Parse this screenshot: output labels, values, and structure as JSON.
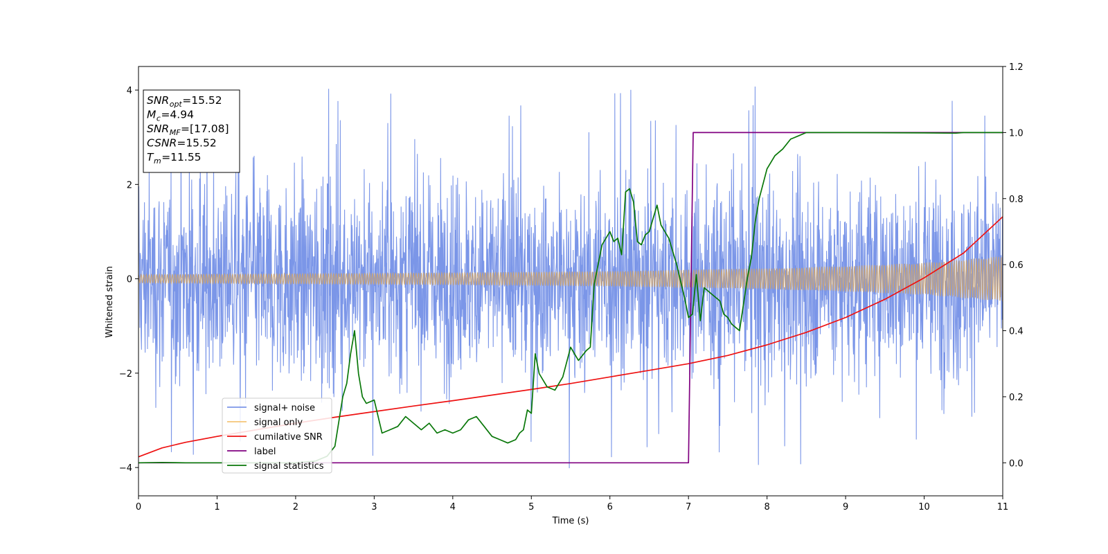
{
  "chart_data": {
    "type": "line",
    "xlabel": "Time (s)",
    "ylabel": "Whitened strain",
    "x_ticks": [
      "0",
      "1",
      "2",
      "3",
      "4",
      "5",
      "6",
      "7",
      "8",
      "9",
      "10",
      "11"
    ],
    "y_ticks": [
      "−4",
      "−2",
      "0",
      "2",
      "4"
    ],
    "y2_ticks": [
      "0.0",
      "0.2",
      "0.4",
      "0.6",
      "0.8",
      "1.0",
      "1.2"
    ],
    "xlim": [
      0,
      11
    ],
    "ylim": [
      -4.6,
      4.5
    ],
    "y2lim": [
      -0.1,
      1.2
    ],
    "grid": false,
    "legend_position": "lower-left",
    "info_box": {
      "position": "top-left",
      "lines": [
        {
          "name": "SNR",
          "sub": "opt",
          "value": "=15.52"
        },
        {
          "name": "M",
          "sub": "c",
          "value": "=4.94"
        },
        {
          "name": "SNR",
          "sub": "MF",
          "value": "=[17.08]"
        },
        {
          "name": "CSNR",
          "sub": "",
          "value": "=15.52"
        },
        {
          "name": "T",
          "sub": "m",
          "value": "=11.55"
        }
      ]
    },
    "series": [
      {
        "name": "signal+ noise",
        "axis": "left",
        "color": "#7b96e8",
        "kind": "noise",
        "approx_amplitude": 1.6,
        "approx_peak": 4.1
      },
      {
        "name": "signal only",
        "axis": "left",
        "color": "#f5b861",
        "kind": "chirp",
        "envelope": {
          "x": [
            0,
            2,
            4,
            6,
            7,
            8,
            9,
            10,
            11
          ],
          "y": [
            0.09,
            0.11,
            0.13,
            0.16,
            0.19,
            0.22,
            0.27,
            0.34,
            0.48
          ]
        }
      },
      {
        "name": "cumilative SNR",
        "axis": "right",
        "color": "#ee1111",
        "x": [
          0,
          0.3,
          0.6,
          1,
          1.5,
          2,
          2.5,
          3,
          3.5,
          4,
          4.5,
          5,
          5.5,
          6,
          6.5,
          7,
          7.5,
          8,
          8.5,
          9,
          9.5,
          10,
          10.5,
          11
        ],
        "y": [
          0.018,
          0.045,
          0.062,
          0.08,
          0.1,
          0.12,
          0.138,
          0.155,
          0.172,
          0.188,
          0.205,
          0.222,
          0.24,
          0.26,
          0.28,
          0.3,
          0.325,
          0.357,
          0.395,
          0.44,
          0.495,
          0.56,
          0.635,
          0.745
        ]
      },
      {
        "name": "label",
        "axis": "right",
        "color": "#800080",
        "x": [
          0,
          7.0,
          7.06,
          11
        ],
        "y": [
          0.0,
          0.0,
          1.0,
          1.0
        ]
      },
      {
        "name": "signal statistics",
        "axis": "right",
        "color": "#087708",
        "x": [
          0,
          0.3,
          0.6,
          1,
          1.5,
          2,
          2.25,
          2.4,
          2.5,
          2.6,
          2.65,
          2.7,
          2.75,
          2.8,
          2.85,
          2.9,
          3.0,
          3.1,
          3.2,
          3.3,
          3.4,
          3.5,
          3.6,
          3.7,
          3.8,
          3.9,
          4.0,
          4.1,
          4.2,
          4.3,
          4.4,
          4.5,
          4.6,
          4.7,
          4.8,
          4.85,
          4.9,
          4.95,
          5.0,
          5.05,
          5.1,
          5.2,
          5.3,
          5.4,
          5.5,
          5.6,
          5.7,
          5.75,
          5.8,
          5.9,
          6.0,
          6.05,
          6.1,
          6.15,
          6.2,
          6.25,
          6.3,
          6.35,
          6.4,
          6.45,
          6.5,
          6.6,
          6.65,
          6.7,
          6.75,
          6.8,
          6.85,
          6.9,
          6.95,
          7.0,
          7.05,
          7.1,
          7.15,
          7.2,
          7.3,
          7.4,
          7.45,
          7.5,
          7.55,
          7.6,
          7.65,
          7.7,
          7.75,
          7.8,
          7.85,
          7.9,
          8.0,
          8.1,
          8.2,
          8.3,
          8.4,
          8.5,
          8.6,
          8.7,
          8.8,
          9,
          10,
          10.4,
          10.5,
          10.6,
          11
        ],
        "y": [
          0.0,
          0.001,
          0.0,
          0.0,
          0.0,
          0.0,
          0.005,
          0.02,
          0.05,
          0.2,
          0.24,
          0.33,
          0.4,
          0.27,
          0.2,
          0.18,
          0.19,
          0.09,
          0.1,
          0.11,
          0.14,
          0.12,
          0.1,
          0.12,
          0.09,
          0.1,
          0.09,
          0.1,
          0.13,
          0.14,
          0.11,
          0.08,
          0.07,
          0.06,
          0.07,
          0.09,
          0.1,
          0.16,
          0.15,
          0.33,
          0.27,
          0.23,
          0.22,
          0.26,
          0.35,
          0.31,
          0.34,
          0.35,
          0.54,
          0.66,
          0.7,
          0.67,
          0.68,
          0.63,
          0.82,
          0.83,
          0.79,
          0.67,
          0.66,
          0.69,
          0.7,
          0.78,
          0.72,
          0.7,
          0.68,
          0.64,
          0.6,
          0.55,
          0.5,
          0.44,
          0.45,
          0.57,
          0.43,
          0.53,
          0.51,
          0.49,
          0.45,
          0.44,
          0.42,
          0.41,
          0.4,
          0.48,
          0.56,
          0.62,
          0.73,
          0.8,
          0.89,
          0.93,
          0.95,
          0.98,
          0.99,
          1.0,
          1.0,
          1.0,
          1.0,
          1.0,
          0.999,
          0.998,
          1.0,
          1.0,
          1.0
        ]
      }
    ]
  }
}
